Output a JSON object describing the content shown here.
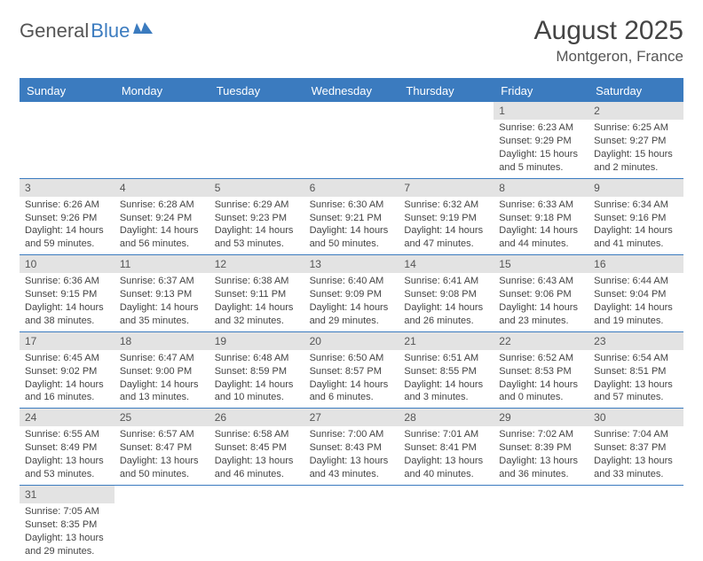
{
  "logo": {
    "text1": "General",
    "text2": "Blue"
  },
  "title": "August 2025",
  "location": "Montgeron, France",
  "colors": {
    "accent": "#3b7bbf",
    "daynum_bg": "#e3e3e3",
    "text": "#444444",
    "header_text": "#ffffff"
  },
  "dayNames": [
    "Sunday",
    "Monday",
    "Tuesday",
    "Wednesday",
    "Thursday",
    "Friday",
    "Saturday"
  ],
  "weeks": [
    [
      {
        "empty": true
      },
      {
        "empty": true
      },
      {
        "empty": true
      },
      {
        "empty": true
      },
      {
        "empty": true
      },
      {
        "n": "1",
        "sr": "Sunrise: 6:23 AM",
        "ss": "Sunset: 9:29 PM",
        "dl": "Daylight: 15 hours and 5 minutes."
      },
      {
        "n": "2",
        "sr": "Sunrise: 6:25 AM",
        "ss": "Sunset: 9:27 PM",
        "dl": "Daylight: 15 hours and 2 minutes."
      }
    ],
    [
      {
        "n": "3",
        "sr": "Sunrise: 6:26 AM",
        "ss": "Sunset: 9:26 PM",
        "dl": "Daylight: 14 hours and 59 minutes."
      },
      {
        "n": "4",
        "sr": "Sunrise: 6:28 AM",
        "ss": "Sunset: 9:24 PM",
        "dl": "Daylight: 14 hours and 56 minutes."
      },
      {
        "n": "5",
        "sr": "Sunrise: 6:29 AM",
        "ss": "Sunset: 9:23 PM",
        "dl": "Daylight: 14 hours and 53 minutes."
      },
      {
        "n": "6",
        "sr": "Sunrise: 6:30 AM",
        "ss": "Sunset: 9:21 PM",
        "dl": "Daylight: 14 hours and 50 minutes."
      },
      {
        "n": "7",
        "sr": "Sunrise: 6:32 AM",
        "ss": "Sunset: 9:19 PM",
        "dl": "Daylight: 14 hours and 47 minutes."
      },
      {
        "n": "8",
        "sr": "Sunrise: 6:33 AM",
        "ss": "Sunset: 9:18 PM",
        "dl": "Daylight: 14 hours and 44 minutes."
      },
      {
        "n": "9",
        "sr": "Sunrise: 6:34 AM",
        "ss": "Sunset: 9:16 PM",
        "dl": "Daylight: 14 hours and 41 minutes."
      }
    ],
    [
      {
        "n": "10",
        "sr": "Sunrise: 6:36 AM",
        "ss": "Sunset: 9:15 PM",
        "dl": "Daylight: 14 hours and 38 minutes."
      },
      {
        "n": "11",
        "sr": "Sunrise: 6:37 AM",
        "ss": "Sunset: 9:13 PM",
        "dl": "Daylight: 14 hours and 35 minutes."
      },
      {
        "n": "12",
        "sr": "Sunrise: 6:38 AM",
        "ss": "Sunset: 9:11 PM",
        "dl": "Daylight: 14 hours and 32 minutes."
      },
      {
        "n": "13",
        "sr": "Sunrise: 6:40 AM",
        "ss": "Sunset: 9:09 PM",
        "dl": "Daylight: 14 hours and 29 minutes."
      },
      {
        "n": "14",
        "sr": "Sunrise: 6:41 AM",
        "ss": "Sunset: 9:08 PM",
        "dl": "Daylight: 14 hours and 26 minutes."
      },
      {
        "n": "15",
        "sr": "Sunrise: 6:43 AM",
        "ss": "Sunset: 9:06 PM",
        "dl": "Daylight: 14 hours and 23 minutes."
      },
      {
        "n": "16",
        "sr": "Sunrise: 6:44 AM",
        "ss": "Sunset: 9:04 PM",
        "dl": "Daylight: 14 hours and 19 minutes."
      }
    ],
    [
      {
        "n": "17",
        "sr": "Sunrise: 6:45 AM",
        "ss": "Sunset: 9:02 PM",
        "dl": "Daylight: 14 hours and 16 minutes."
      },
      {
        "n": "18",
        "sr": "Sunrise: 6:47 AM",
        "ss": "Sunset: 9:00 PM",
        "dl": "Daylight: 14 hours and 13 minutes."
      },
      {
        "n": "19",
        "sr": "Sunrise: 6:48 AM",
        "ss": "Sunset: 8:59 PM",
        "dl": "Daylight: 14 hours and 10 minutes."
      },
      {
        "n": "20",
        "sr": "Sunrise: 6:50 AM",
        "ss": "Sunset: 8:57 PM",
        "dl": "Daylight: 14 hours and 6 minutes."
      },
      {
        "n": "21",
        "sr": "Sunrise: 6:51 AM",
        "ss": "Sunset: 8:55 PM",
        "dl": "Daylight: 14 hours and 3 minutes."
      },
      {
        "n": "22",
        "sr": "Sunrise: 6:52 AM",
        "ss": "Sunset: 8:53 PM",
        "dl": "Daylight: 14 hours and 0 minutes."
      },
      {
        "n": "23",
        "sr": "Sunrise: 6:54 AM",
        "ss": "Sunset: 8:51 PM",
        "dl": "Daylight: 13 hours and 57 minutes."
      }
    ],
    [
      {
        "n": "24",
        "sr": "Sunrise: 6:55 AM",
        "ss": "Sunset: 8:49 PM",
        "dl": "Daylight: 13 hours and 53 minutes."
      },
      {
        "n": "25",
        "sr": "Sunrise: 6:57 AM",
        "ss": "Sunset: 8:47 PM",
        "dl": "Daylight: 13 hours and 50 minutes."
      },
      {
        "n": "26",
        "sr": "Sunrise: 6:58 AM",
        "ss": "Sunset: 8:45 PM",
        "dl": "Daylight: 13 hours and 46 minutes."
      },
      {
        "n": "27",
        "sr": "Sunrise: 7:00 AM",
        "ss": "Sunset: 8:43 PM",
        "dl": "Daylight: 13 hours and 43 minutes."
      },
      {
        "n": "28",
        "sr": "Sunrise: 7:01 AM",
        "ss": "Sunset: 8:41 PM",
        "dl": "Daylight: 13 hours and 40 minutes."
      },
      {
        "n": "29",
        "sr": "Sunrise: 7:02 AM",
        "ss": "Sunset: 8:39 PM",
        "dl": "Daylight: 13 hours and 36 minutes."
      },
      {
        "n": "30",
        "sr": "Sunrise: 7:04 AM",
        "ss": "Sunset: 8:37 PM",
        "dl": "Daylight: 13 hours and 33 minutes."
      }
    ],
    [
      {
        "n": "31",
        "sr": "Sunrise: 7:05 AM",
        "ss": "Sunset: 8:35 PM",
        "dl": "Daylight: 13 hours and 29 minutes."
      },
      {
        "empty": true
      },
      {
        "empty": true
      },
      {
        "empty": true
      },
      {
        "empty": true
      },
      {
        "empty": true
      },
      {
        "empty": true
      }
    ]
  ]
}
